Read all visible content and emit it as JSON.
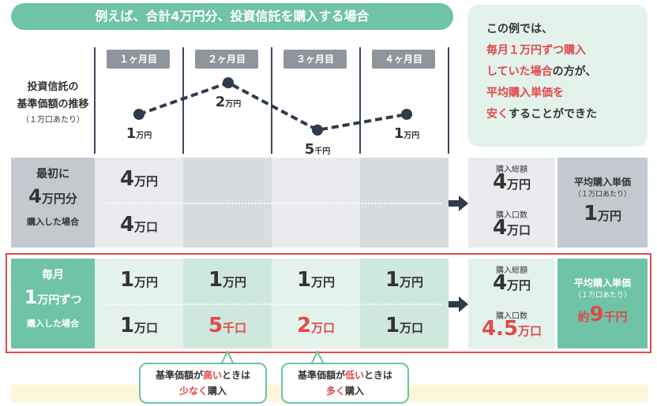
{
  "title": "例えば、合計4万円分、投資信託を購入する場合",
  "callout": {
    "line1": "この例では、",
    "line2": "毎月１万円ずつ購入",
    "line3a": "していた場合",
    "line3b": "の方が、",
    "line4": "平均購入単価を",
    "line5a": "安く",
    "line5b": "することができた"
  },
  "chart_label": {
    "line1": "投資信託の",
    "line2": "基準価額の推移",
    "line3": "（１万口あたり）"
  },
  "months": [
    "１ヶ月目",
    "２ヶ月目",
    "３ヶ月目",
    "４ヶ月目"
  ],
  "chart_data": {
    "type": "line",
    "categories": [
      "１ヶ月目",
      "２ヶ月目",
      "３ヶ月目",
      "４ヶ月目"
    ],
    "values": [
      1,
      2,
      0.5,
      1
    ],
    "point_labels": [
      {
        "n": "1",
        "u": "万円"
      },
      {
        "n": "2",
        "u": "万円"
      },
      {
        "n": "5",
        "u": "千円"
      },
      {
        "n": "1",
        "u": "万円"
      }
    ]
  },
  "lump": {
    "label1": "最初に",
    "label2n": "4",
    "label2u": "万円分",
    "label3": "購入した場合",
    "amount_n": "4",
    "amount_u": "万円",
    "units_n": "4",
    "units_u": "万口",
    "total_label": "購入総額",
    "total_n": "4",
    "total_u": "万円",
    "units_label": "購入口数",
    "tunits_n": "4",
    "tunits_u": "万口",
    "avg_title": "平均購入単価",
    "avg_sub": "（１万口あたり）",
    "avg_n": "1",
    "avg_u": "万円"
  },
  "monthly": {
    "label1": "毎月",
    "label2n": "1",
    "label2u": "万円ずつ",
    "label3": "購入した場合",
    "amounts": [
      {
        "n": "1",
        "u": "万円"
      },
      {
        "n": "1",
        "u": "万円"
      },
      {
        "n": "1",
        "u": "万円"
      },
      {
        "n": "1",
        "u": "万円"
      }
    ],
    "units": [
      {
        "n": "1",
        "u": "万口"
      },
      {
        "n": "5",
        "u": "千口"
      },
      {
        "n": "2",
        "u": "万口"
      },
      {
        "n": "1",
        "u": "万口"
      }
    ],
    "total_label": "購入総額",
    "total_n": "4",
    "total_u": "万円",
    "units_label": "購入口数",
    "tunits_n": "4.5",
    "tunits_u": "万口",
    "avg_title": "平均購入単価",
    "avg_sub": "（１万口あたり）",
    "avg_pre": "約",
    "avg_n": "9",
    "avg_u": "千円"
  },
  "notes": {
    "high_a": "基準価額が",
    "high_b": "高い",
    "high_c": "ときは",
    "high_d": "少なく",
    "high_e": "購入",
    "low_a": "基準価額が",
    "low_b": "低い",
    "low_c": "ときは",
    "low_d": "多く",
    "low_e": "購入"
  }
}
